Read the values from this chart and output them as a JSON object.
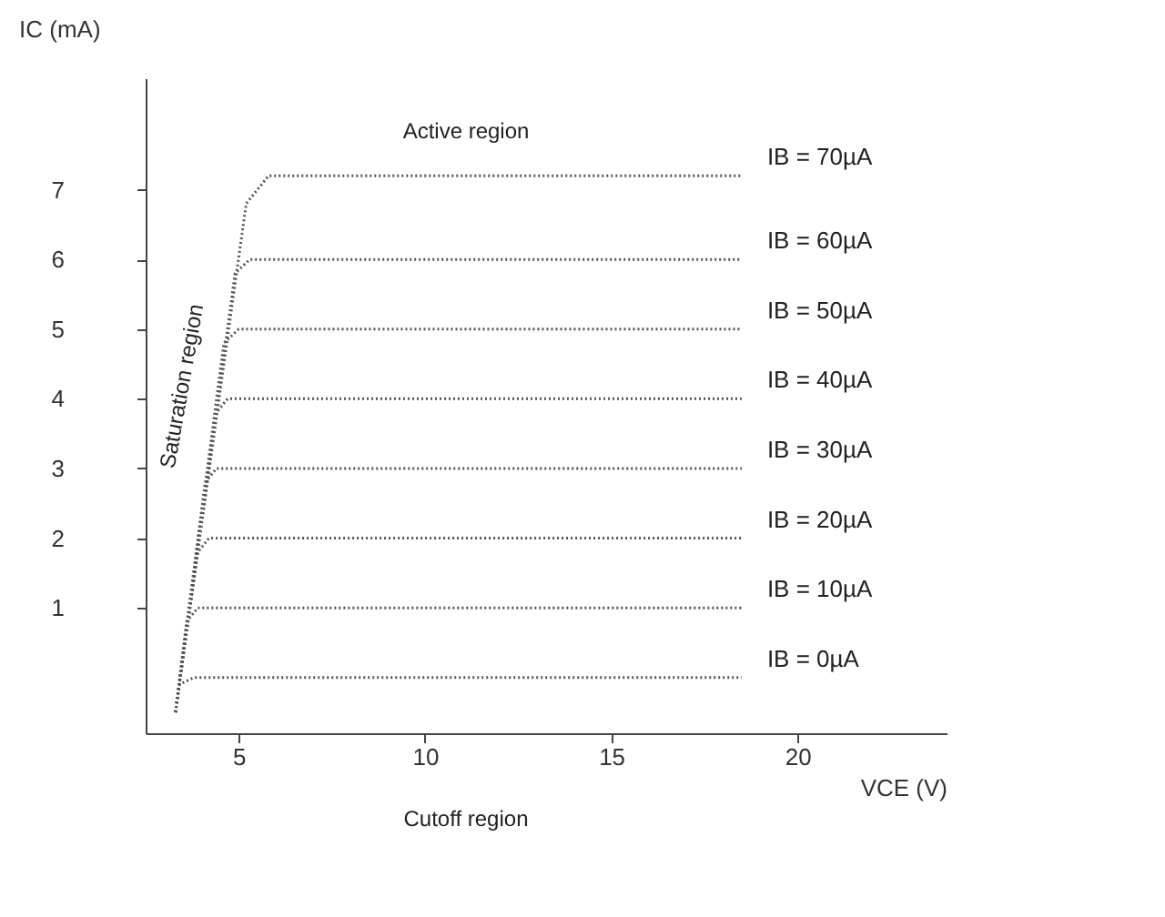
{
  "chart_data": {
    "type": "line",
    "xlabel": "VCE (V)",
    "ylabel": "IC (mA)",
    "xlim": [
      2.5,
      24
    ],
    "ylim": [
      -0.8,
      8.6
    ],
    "xticks": [
      5,
      10,
      15,
      20
    ],
    "yticks": [
      1,
      2,
      3,
      4,
      5,
      6,
      7
    ],
    "grid": false,
    "legend": false,
    "line_style": "dotted",
    "marker": "none",
    "series": [
      {
        "name": "IB = 70µA",
        "color": "#555555",
        "x": [
          3.3,
          5.2,
          5.8,
          18.5
        ],
        "values": [
          -0.5,
          6.8,
          7.2,
          7.2
        ]
      },
      {
        "name": "IB = 60µA",
        "color": "#555555",
        "x": [
          3.3,
          4.9,
          5.3,
          18.5
        ],
        "values": [
          -0.5,
          5.8,
          6.0,
          6.0
        ]
      },
      {
        "name": "IB = 50µA",
        "color": "#555555",
        "x": [
          3.3,
          4.6,
          5.0,
          18.5
        ],
        "values": [
          -0.5,
          4.8,
          5.0,
          5.0
        ]
      },
      {
        "name": "IB = 40µA",
        "color": "#555555",
        "x": [
          3.3,
          4.4,
          4.7,
          18.5
        ],
        "values": [
          -0.5,
          3.8,
          4.0,
          4.0
        ]
      },
      {
        "name": "IB = 30µA",
        "color": "#555555",
        "x": [
          3.3,
          4.1,
          4.4,
          18.5
        ],
        "values": [
          -0.5,
          2.8,
          3.0,
          3.0
        ]
      },
      {
        "name": "IB = 20µA",
        "color": "#555555",
        "x": [
          3.3,
          3.9,
          4.2,
          18.5
        ],
        "values": [
          -0.5,
          1.8,
          2.0,
          2.0
        ]
      },
      {
        "name": "IB = 10µA",
        "color": "#555555",
        "x": [
          3.3,
          3.6,
          3.9,
          18.5
        ],
        "values": [
          -0.5,
          0.8,
          1.0,
          1.0
        ]
      },
      {
        "name": "IB = 0µA",
        "color": "#555555",
        "x": [
          3.3,
          3.4,
          3.8,
          18.5
        ],
        "values": [
          -0.5,
          -0.1,
          0.0,
          0.0
        ]
      }
    ],
    "annotations": [
      "Active region",
      "Saturation region",
      "Cutoff region"
    ]
  }
}
